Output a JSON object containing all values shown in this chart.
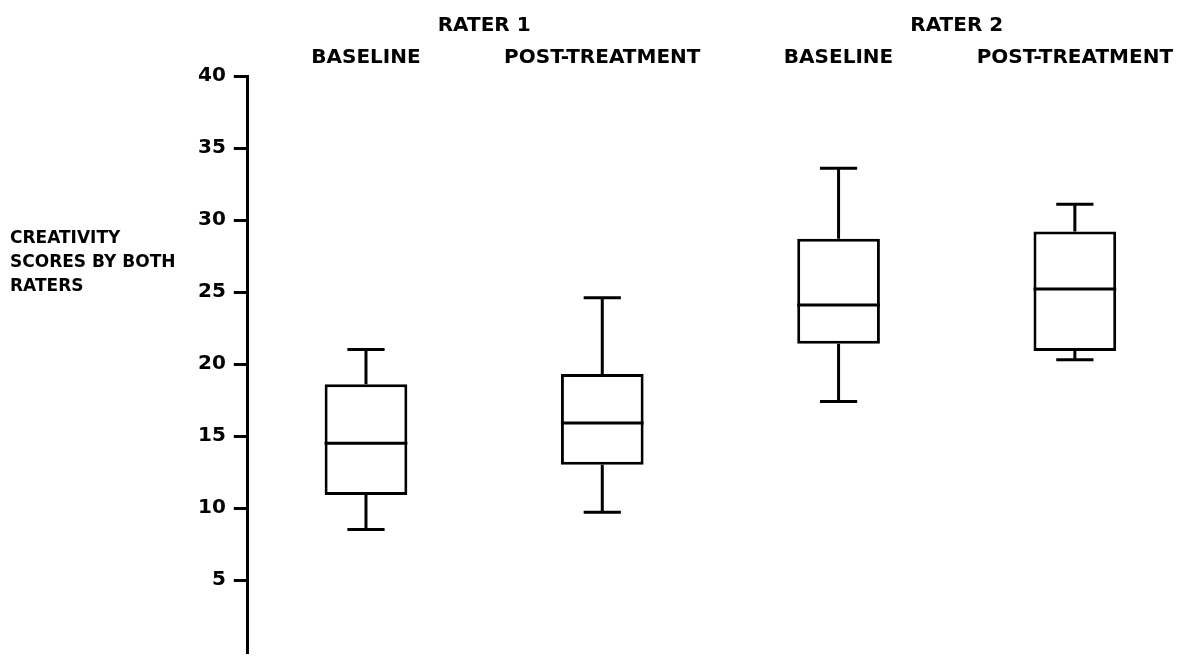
{
  "chart_data": {
    "type": "box",
    "ylabel": "CREATIVITY SCORES BY BOTH RATERS",
    "categories": [
      "BASELINE",
      "POST-TREATMENT",
      "BASELINE",
      "POST-TREATMENT"
    ],
    "annotations": [
      "RATER 1",
      "RATER 2"
    ],
    "boxes": [
      {
        "low": 8.5,
        "q1": 10.9,
        "median": 14.5,
        "q3": 18.6,
        "high": 21
      },
      {
        "low": 9.7,
        "q1": 13,
        "median": 15.9,
        "q3": 19.3,
        "high": 24.6
      },
      {
        "low": 17.4,
        "q1": 21.4,
        "median": 24.1,
        "q3": 28.7,
        "high": 33.6
      },
      {
        "low": 20.3,
        "q1": 20.9,
        "median": 25.2,
        "q3": 29.2,
        "high": 31.1
      }
    ],
    "color": "#000000",
    "ylim": [
      0,
      40
    ],
    "yticks": [
      5,
      10,
      15,
      20,
      25,
      30,
      35,
      40
    ],
    "grid": false,
    "legend": false
  }
}
